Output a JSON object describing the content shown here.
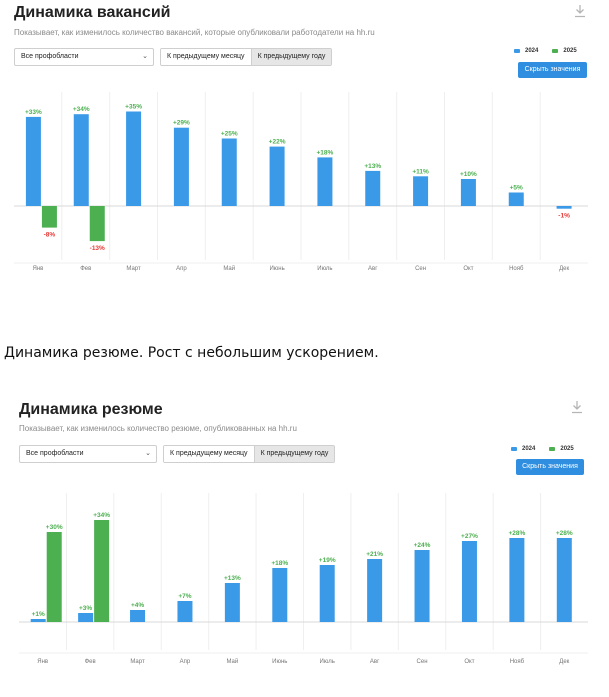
{
  "colors": {
    "y2024": "#3a9ae8",
    "y2025": "#4caf50",
    "label2025": "#4caf50",
    "labelNeg": "#e53935",
    "button": "#2f8ee0"
  },
  "caption": "Динамика резюме. Рост с небольшим ускорением.",
  "panels": [
    {
      "id": "vacancies",
      "title": "Динамика вакансий",
      "subtitle": "Показывает, как изменилось количество вакансий, которые опубликовали работодатели на hh.ru",
      "select_value": "Все профобласти",
      "toggle": {
        "prev_month": "К предыдущему месяцу",
        "prev_year": "К предыдущему году"
      },
      "legend": [
        "2024",
        "2025"
      ],
      "hide_button": "Скрыть значения"
    },
    {
      "id": "resumes",
      "title": "Динамика резюме",
      "subtitle": "Показывает, как изменилось количество резюме, опубликованных на hh.ru",
      "select_value": "Все профобласти",
      "toggle": {
        "prev_month": "К предыдущему месяцу",
        "prev_year": "К предыдущему году"
      },
      "legend": [
        "2024",
        "2025"
      ],
      "hide_button": "Скрыть значения"
    }
  ],
  "chart_data": [
    {
      "type": "bar",
      "title": "Динамика вакансий",
      "categories": [
        "Янв",
        "Фев",
        "Март",
        "Апр",
        "Май",
        "Июнь",
        "Июль",
        "Авг",
        "Сен",
        "Окт",
        "Нояб",
        "Дек"
      ],
      "series": [
        {
          "name": "2024",
          "values": [
            33,
            34,
            35,
            29,
            25,
            22,
            18,
            13,
            11,
            10,
            5,
            -1
          ],
          "labels": [
            "+33%",
            "+34%",
            "+35%",
            "+29%",
            "+25%",
            "+22%",
            "+18%",
            "+13%",
            "+11%",
            "+10%",
            "+5%",
            "-1%"
          ]
        },
        {
          "name": "2025",
          "values": [
            -8,
            -13,
            null,
            null,
            null,
            null,
            null,
            null,
            null,
            null,
            null,
            null
          ],
          "labels": [
            "-8%",
            "-13%",
            null,
            null,
            null,
            null,
            null,
            null,
            null,
            null,
            null,
            null
          ]
        }
      ],
      "ylim": [
        -22,
        40
      ],
      "grid": true,
      "legend_position": "top-right"
    },
    {
      "type": "bar",
      "title": "Динамика резюме",
      "categories": [
        "Янв",
        "Фев",
        "Март",
        "Апр",
        "Май",
        "Июнь",
        "Июль",
        "Авг",
        "Сен",
        "Окт",
        "Нояб",
        "Дек"
      ],
      "series": [
        {
          "name": "2024",
          "values": [
            1,
            3,
            4,
            7,
            13,
            18,
            19,
            21,
            24,
            27,
            28,
            28
          ],
          "labels": [
            "+1%",
            "+3%",
            "+4%",
            "+7%",
            "+13%",
            "+18%",
            "+19%",
            "+21%",
            "+24%",
            "+27%",
            "+28%",
            "+28%"
          ]
        },
        {
          "name": "2025",
          "values": [
            30,
            34,
            null,
            null,
            null,
            null,
            null,
            null,
            null,
            null,
            null,
            null
          ],
          "labels": [
            "+30%",
            "+34%",
            null,
            null,
            null,
            null,
            null,
            null,
            null,
            null,
            null,
            null
          ]
        }
      ],
      "ylim": [
        -10,
        38
      ],
      "grid": true,
      "legend_position": "top-right"
    }
  ]
}
